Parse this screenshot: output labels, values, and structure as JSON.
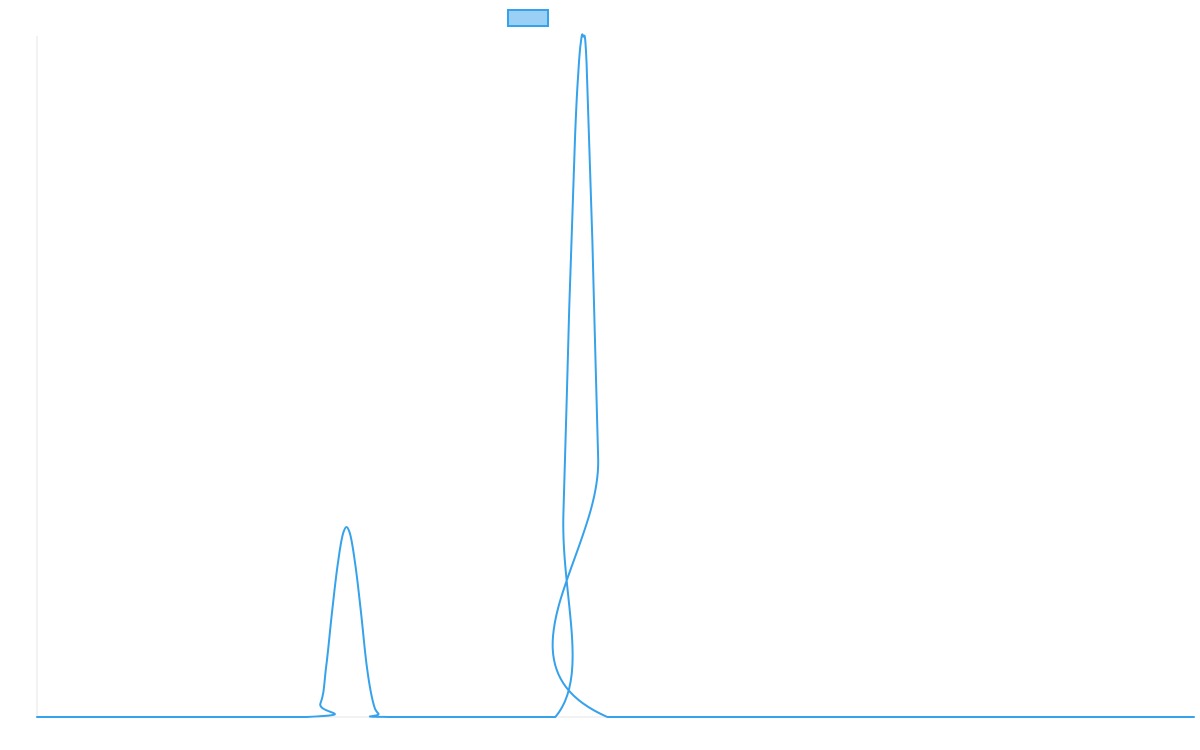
{
  "chart_data": {
    "type": "line",
    "title": "",
    "xlabel": "",
    "ylabel": "",
    "legend": {
      "placement": "top-center",
      "entries": [
        {
          "name": "",
          "color": "#9ad0f5",
          "border_color": "#36a2eb"
        }
      ]
    },
    "grid": false,
    "series": [
      {
        "name": "",
        "color": "#36a2eb",
        "x": [
          0,
          23.3,
          24.5,
          25.0,
          25.5,
          26.0,
          26.5,
          27.0,
          27.5,
          28.0,
          28.5,
          29.0,
          29.5,
          30.3,
          44.8,
          45.5,
          46.0,
          46.5,
          46.8,
          47.0,
          47.2,
          47.5,
          48.0,
          48.5,
          49.3,
          100
        ],
        "values": [
          0,
          0,
          2.0,
          7.5,
          15.4,
          22.5,
          27.2,
          27.2,
          22.5,
          15.4,
          7.5,
          2.5,
          0.5,
          0,
          0,
          30,
          60,
          85,
          95,
          99,
          100,
          96,
          70,
          38,
          0,
          0
        ]
      }
    ],
    "xlim": [
      0,
      100
    ],
    "ylim": [
      0,
      100
    ]
  }
}
